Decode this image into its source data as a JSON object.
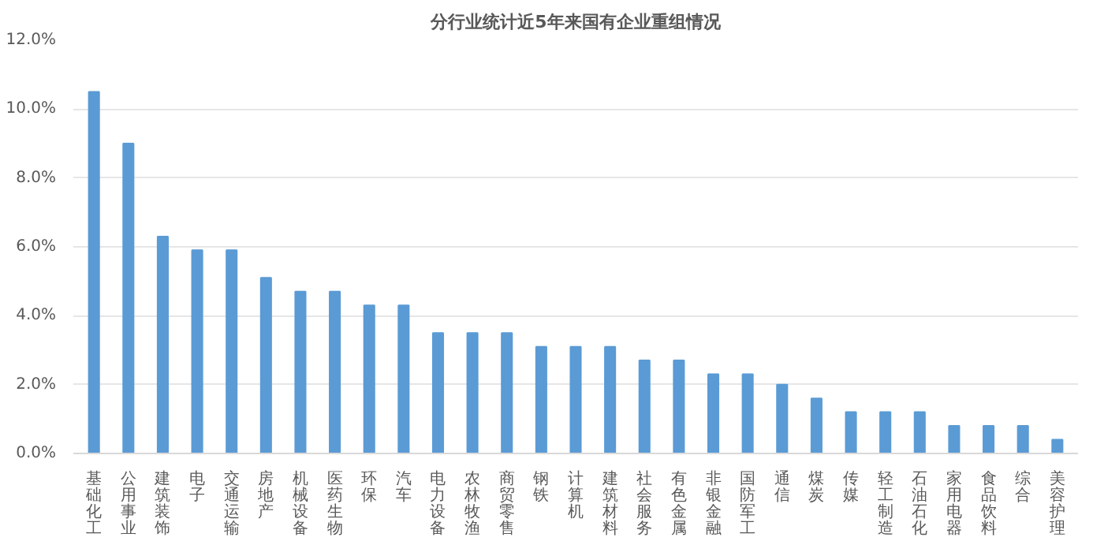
{
  "chart_data": {
    "type": "bar",
    "title": "分行业统计近5年来国有企业重组情况",
    "categories": [
      "基础化工",
      "公用事业",
      "建筑装饰",
      "电子",
      "交通运输",
      "房地产",
      "机械设备",
      "医药生物",
      "环保",
      "汽车",
      "电力设备",
      "农林牧渔",
      "商贸零售",
      "钢铁",
      "计算机",
      "建筑材料",
      "社会服务",
      "有色金属",
      "非银金融",
      "国防军工",
      "通信",
      "煤炭",
      "传媒",
      "轻工制造",
      "石油石化",
      "家用电器",
      "食品饮料",
      "综合",
      "美容护理"
    ],
    "values": [
      10.5,
      9.0,
      6.3,
      5.9,
      5.9,
      5.1,
      4.7,
      4.7,
      4.3,
      4.3,
      3.5,
      3.5,
      3.5,
      3.1,
      3.1,
      3.1,
      2.7,
      2.7,
      2.3,
      2.3,
      2.0,
      1.6,
      1.2,
      1.2,
      1.2,
      0.8,
      0.8,
      0.8,
      0.4
    ],
    "color": "#5b9bd5",
    "ylim": [
      0,
      12
    ],
    "yticks": [
      {
        "value": 0,
        "label": "0.0%"
      },
      {
        "value": 2,
        "label": "2.0%"
      },
      {
        "value": 4,
        "label": "4.0%"
      },
      {
        "value": 6,
        "label": "6.0%"
      },
      {
        "value": 8,
        "label": "8.0%"
      },
      {
        "value": 10,
        "label": "10.0%"
      },
      {
        "value": 12,
        "label": "12.0%"
      }
    ],
    "grid": "y"
  }
}
